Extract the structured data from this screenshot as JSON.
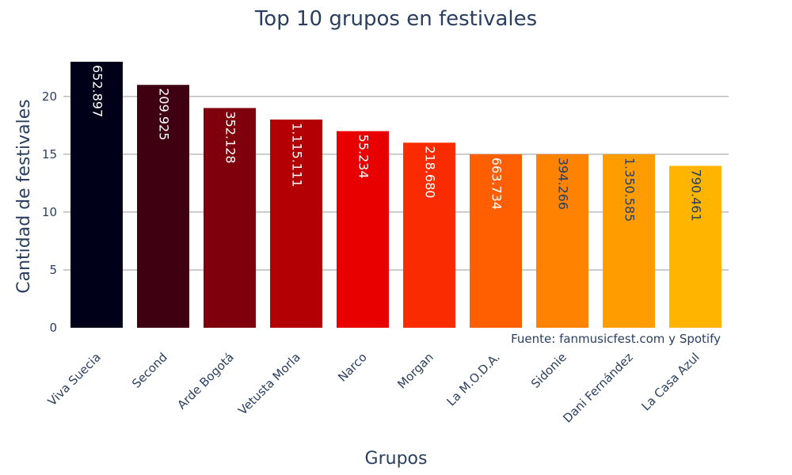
{
  "chart_data": {
    "type": "bar",
    "title": "Top 10 grupos en festivales",
    "xlabel": "Grupos",
    "ylabel": "Cantidad de festivales",
    "source": "Fuente: fanmusicfest.com y Spotify",
    "ylim": [
      0,
      23
    ],
    "yticks": [
      0,
      5,
      10,
      15,
      20
    ],
    "grid": true,
    "categories": [
      "Viva Suecia",
      "Second",
      "Arde Bogotá",
      "Vetusta Morla",
      "Narco",
      "Morgan",
      "La M.O.D.A.",
      "Sidonie",
      "Dani Fernández",
      "La Casa Azul"
    ],
    "values": [
      23,
      21,
      19,
      18,
      17,
      16,
      15,
      15,
      15,
      14
    ],
    "bar_labels": [
      "652.897",
      "209.925",
      "352.128",
      "1.115.111",
      "55.234",
      "218.680",
      "663.734",
      "394.266",
      "1.350.585",
      "790.461"
    ],
    "bar_colors": [
      "#000019",
      "#3f0012",
      "#7f000c",
      "#b20005",
      "#e80000",
      "#fb2b00",
      "#ff5f00",
      "#ff8200",
      "#ff9d00",
      "#ffb400"
    ],
    "label_colors": [
      "#ffffff",
      "#ffffff",
      "#ffffff",
      "#ffffff",
      "#ffffff",
      "#ffffff",
      "#ffffff",
      "#2a3f5f",
      "#2a3f5f",
      "#2a3f5f"
    ]
  }
}
